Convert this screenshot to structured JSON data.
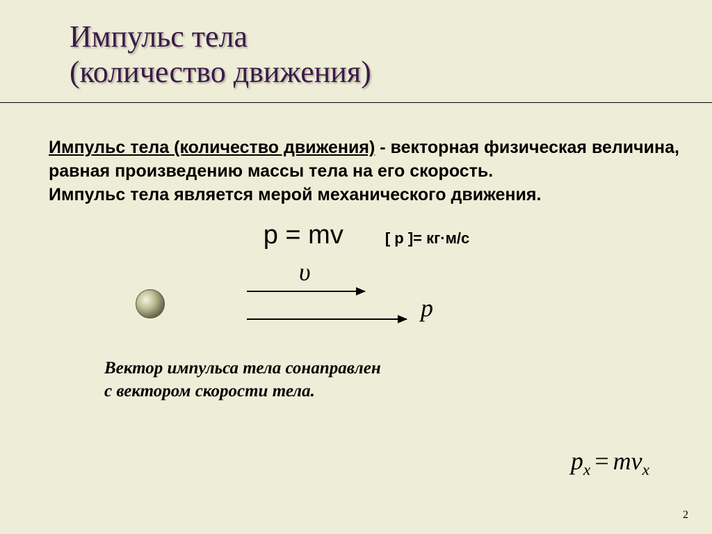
{
  "colors": {
    "background": "#eeeed8",
    "title": "#3c194a",
    "text": "#000000"
  },
  "title": {
    "line1": "Импульс тела",
    "line2": "(количество движения)",
    "fontsize": 44
  },
  "definition": {
    "term": "Импульс тела (количество движения)",
    "rest1": "  -   векторная физическая величина, равная  произведению массы тела на его скорость.",
    "line2": "Импульс тела   является мерой механического движения.",
    "fontsize": 25
  },
  "formula_main": {
    "text": "p = mv",
    "fontsize": 38
  },
  "units": {
    "label": "[ p ]=  кг·м/с",
    "fontsize": 22
  },
  "diagram": {
    "upsilon": "υ",
    "p": "p",
    "symbol_fontsize": 36
  },
  "caption": {
    "line1": "Вектор импульса тела сонаправлен",
    "line2": "с вектором скорости тела.",
    "fontsize": 25
  },
  "projection_formula": {
    "p": "p",
    "x": "x",
    "eq": "=",
    "m": "m",
    "v": "v",
    "fontsize": 36
  },
  "page_number": "2",
  "page_number_fontsize": 16
}
